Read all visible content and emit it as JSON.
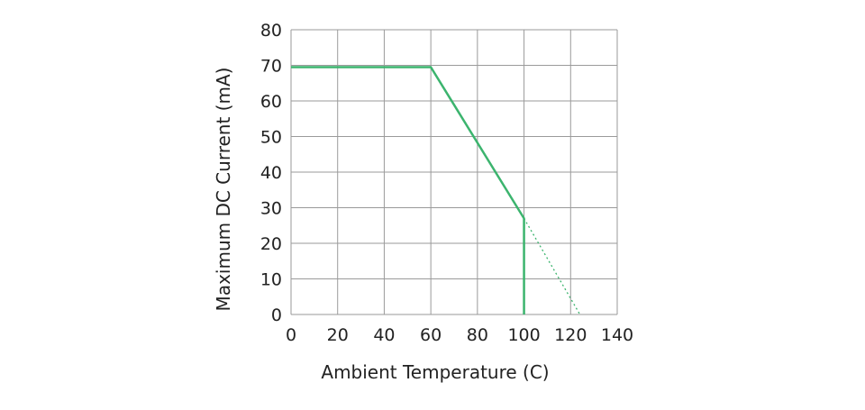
{
  "chart_data": {
    "type": "line",
    "title": "",
    "xlabel": "Ambient Temperature (C)",
    "ylabel": "Maximum DC Current (mA)",
    "xlim": [
      0,
      140
    ],
    "ylim": [
      0,
      80
    ],
    "xticks": [
      0,
      20,
      40,
      60,
      80,
      100,
      120,
      140
    ],
    "yticks": [
      0,
      10,
      20,
      30,
      40,
      50,
      60,
      70,
      80
    ],
    "grid": true,
    "color": "#3cb46e",
    "series": [
      {
        "style": "solid",
        "x": [
          0,
          60,
          100,
          100
        ],
        "y": [
          69.5,
          69.5,
          27,
          0
        ]
      },
      {
        "style": "dotted",
        "x": [
          100,
          124
        ],
        "y": [
          27,
          0
        ]
      }
    ]
  }
}
